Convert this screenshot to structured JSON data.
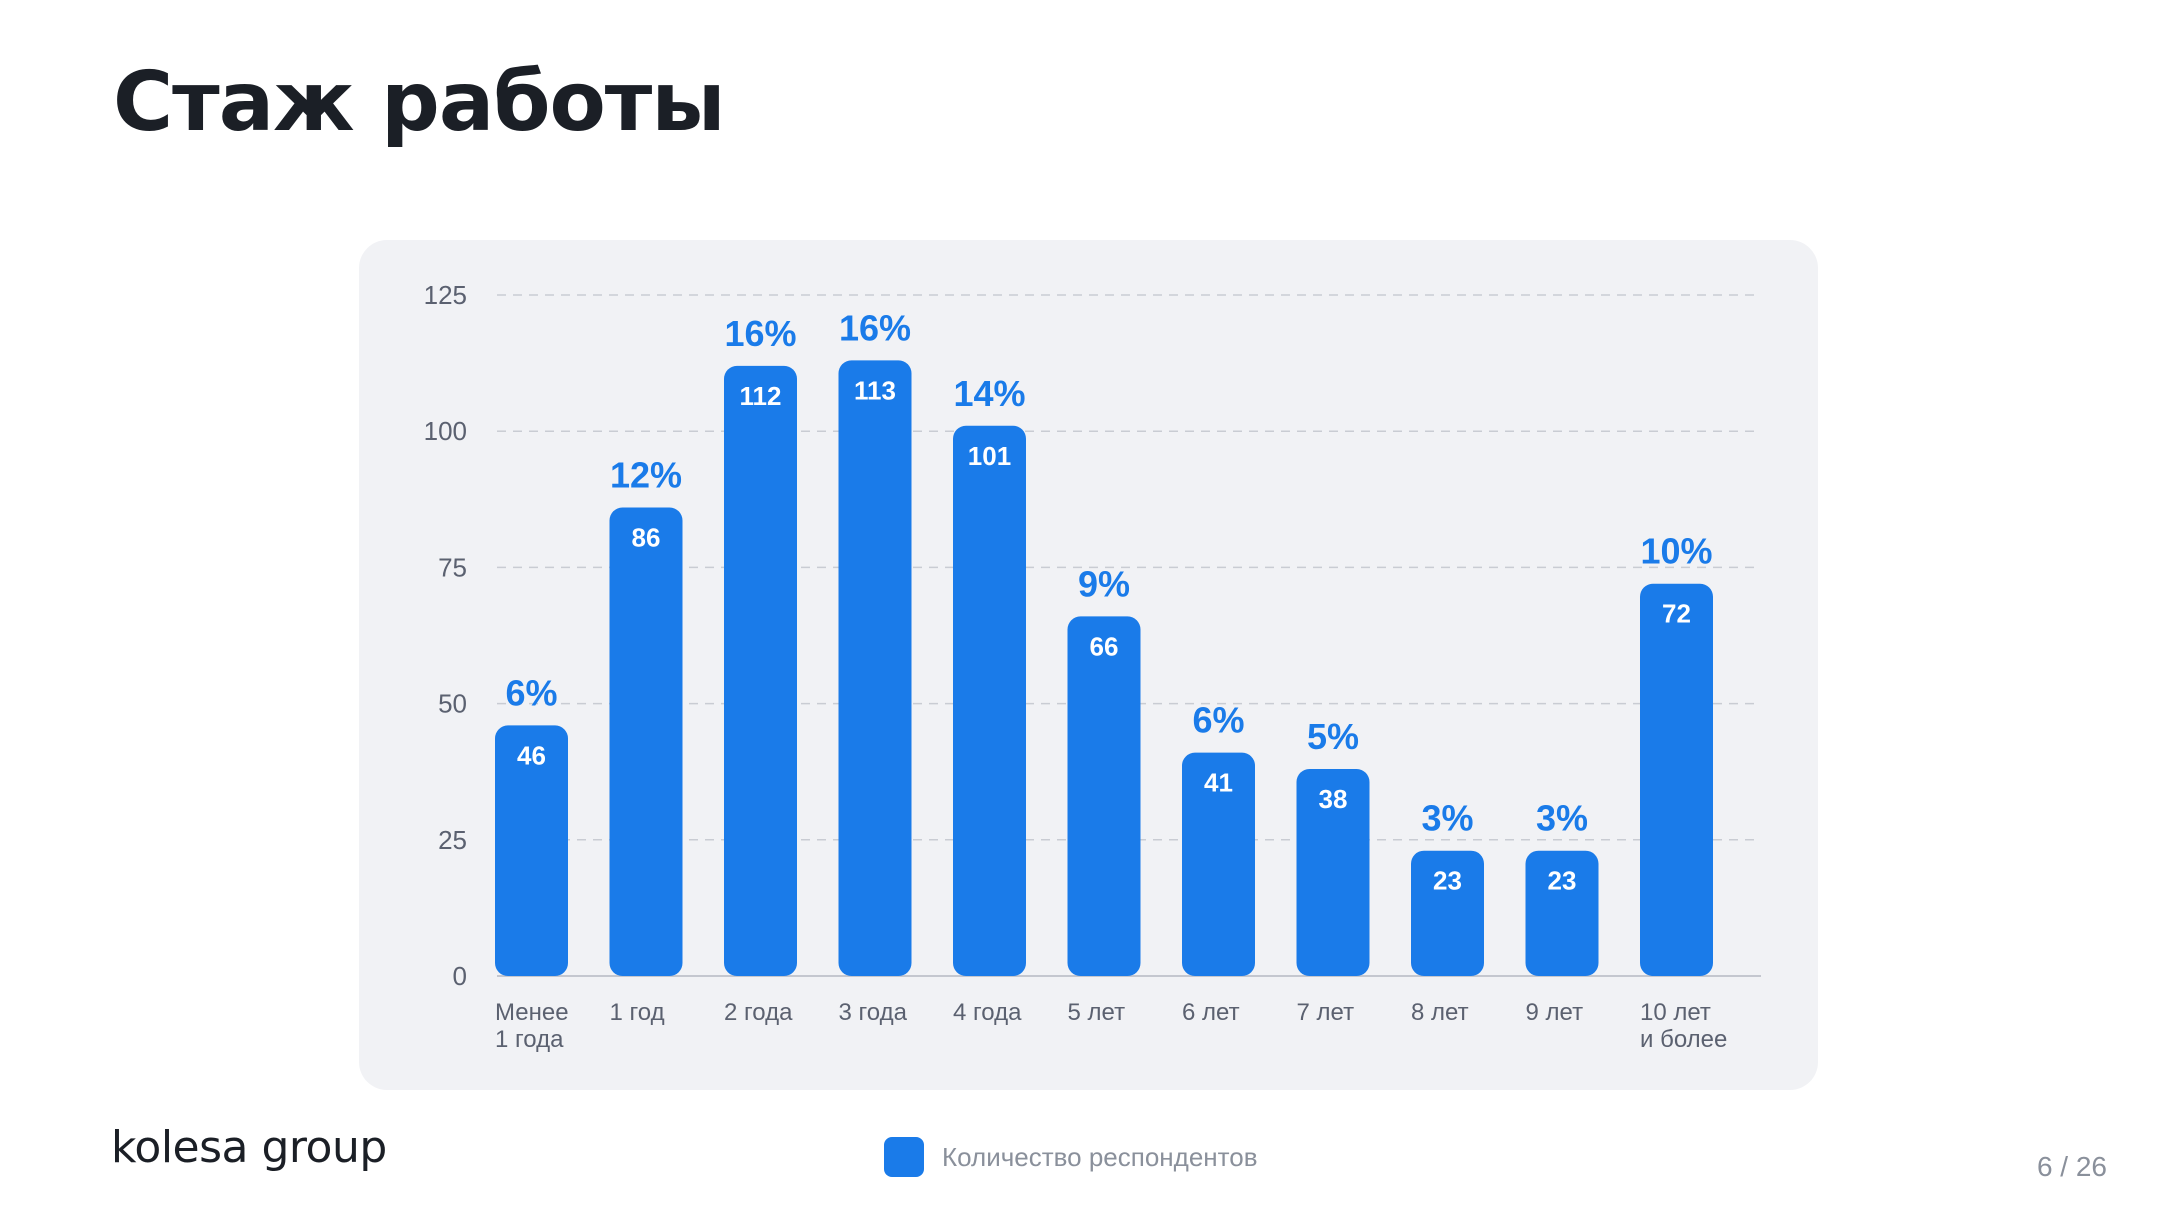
{
  "slide": {
    "title": "Стаж работы",
    "logo_text": "kolesa group",
    "page_counter": "6 / 26"
  },
  "legend": {
    "label": "Количество респондентов",
    "swatch_color": "#1a7be9"
  },
  "chart_data": {
    "type": "bar",
    "categories": [
      [
        "Менее",
        "1 года"
      ],
      [
        "1 год"
      ],
      [
        "2 года"
      ],
      [
        "3 года"
      ],
      [
        "4 года"
      ],
      [
        "5 лет"
      ],
      [
        "6 лет"
      ],
      [
        "7 лет"
      ],
      [
        "8 лет"
      ],
      [
        "9 лет"
      ],
      [
        "10 лет",
        "и более"
      ]
    ],
    "series": [
      {
        "name": "Количество респондентов",
        "values": [
          46,
          86,
          112,
          113,
          101,
          66,
          41,
          38,
          23,
          23,
          72
        ],
        "color": "#1a7be9"
      }
    ],
    "percent_labels": [
      "6%",
      "12%",
      "16%",
      "16%",
      "14%",
      "9%",
      "6%",
      "5%",
      "3%",
      "3%",
      "10%"
    ],
    "y_ticks": [
      0,
      25,
      50,
      75,
      100,
      125
    ],
    "ylim": [
      0,
      125
    ],
    "grid": true,
    "legend_position": "bottom-center",
    "colors": {
      "bar": "#1a7be9",
      "value_label": "#ffffff",
      "percent_label": "#1a7be9",
      "tick_label": "#5b6170",
      "gridline": "#c9ccd3",
      "baseline": "#c4c7cf"
    }
  }
}
